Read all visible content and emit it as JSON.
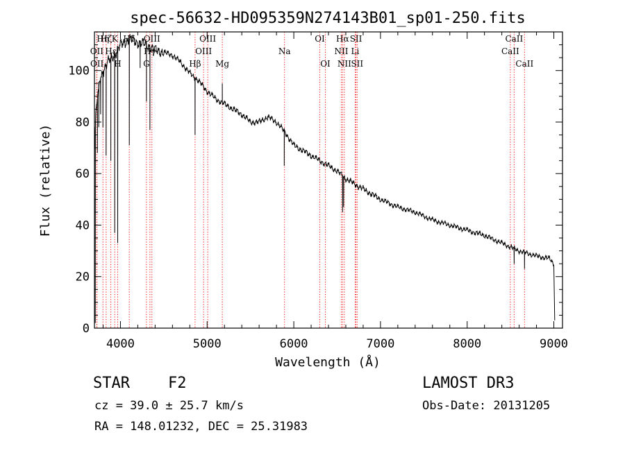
{
  "chart_data": {
    "type": "line",
    "title": "spec-56632-HD095359N274143B01_sp01-250.fits",
    "xlabel": "Wavelength (Å)",
    "ylabel": "Flux (relative)",
    "xlim": [
      3700,
      9100
    ],
    "ylim": [
      0,
      115
    ],
    "xticks": [
      4000,
      5000,
      6000,
      7000,
      8000,
      9000
    ],
    "yticks": [
      0,
      20,
      40,
      60,
      80,
      100
    ],
    "grid": false,
    "line_color": "#000000",
    "marker_color": "#ff0000",
    "continuum": [
      {
        "x": 3700,
        "y": 70
      },
      {
        "x": 3720,
        "y": 85
      },
      {
        "x": 3760,
        "y": 96
      },
      {
        "x": 3800,
        "y": 100
      },
      {
        "x": 3850,
        "y": 103
      },
      {
        "x": 3900,
        "y": 105
      },
      {
        "x": 3950,
        "y": 107
      },
      {
        "x": 4000,
        "y": 110
      },
      {
        "x": 4050,
        "y": 111
      },
      {
        "x": 4100,
        "y": 112
      },
      {
        "x": 4200,
        "y": 111
      },
      {
        "x": 4300,
        "y": 110
      },
      {
        "x": 4400,
        "y": 108
      },
      {
        "x": 4500,
        "y": 107
      },
      {
        "x": 4600,
        "y": 106
      },
      {
        "x": 4700,
        "y": 103
      },
      {
        "x": 4800,
        "y": 99
      },
      {
        "x": 4900,
        "y": 96
      },
      {
        "x": 5000,
        "y": 92
      },
      {
        "x": 5100,
        "y": 89
      },
      {
        "x": 5200,
        "y": 87
      },
      {
        "x": 5300,
        "y": 85
      },
      {
        "x": 5400,
        "y": 83
      },
      {
        "x": 5500,
        "y": 80
      },
      {
        "x": 5600,
        "y": 80
      },
      {
        "x": 5700,
        "y": 82
      },
      {
        "x": 5800,
        "y": 80
      },
      {
        "x": 5900,
        "y": 76
      },
      {
        "x": 6000,
        "y": 71
      },
      {
        "x": 6100,
        "y": 69
      },
      {
        "x": 6200,
        "y": 67
      },
      {
        "x": 6300,
        "y": 65
      },
      {
        "x": 6400,
        "y": 63
      },
      {
        "x": 6500,
        "y": 61
      },
      {
        "x": 6600,
        "y": 58
      },
      {
        "x": 6700,
        "y": 56
      },
      {
        "x": 6800,
        "y": 54
      },
      {
        "x": 6900,
        "y": 52
      },
      {
        "x": 7000,
        "y": 50
      },
      {
        "x": 7200,
        "y": 47
      },
      {
        "x": 7400,
        "y": 45
      },
      {
        "x": 7600,
        "y": 42
      },
      {
        "x": 7800,
        "y": 40
      },
      {
        "x": 8000,
        "y": 38
      },
      {
        "x": 8200,
        "y": 36
      },
      {
        "x": 8400,
        "y": 33
      },
      {
        "x": 8600,
        "y": 30
      },
      {
        "x": 8800,
        "y": 28
      },
      {
        "x": 8950,
        "y": 27
      },
      {
        "x": 9000,
        "y": 25
      },
      {
        "x": 9010,
        "y": 3
      }
    ],
    "absorption_dips": [
      {
        "x": 3710,
        "y": 2
      },
      {
        "x": 3734,
        "y": 68
      },
      {
        "x": 3750,
        "y": 78
      },
      {
        "x": 3771,
        "y": 83
      },
      {
        "x": 3798,
        "y": 78
      },
      {
        "x": 3835,
        "y": 67
      },
      {
        "x": 3889,
        "y": 65
      },
      {
        "x": 3934,
        "y": 37
      },
      {
        "x": 3968,
        "y": 33
      },
      {
        "x": 4102,
        "y": 71
      },
      {
        "x": 4227,
        "y": 101
      },
      {
        "x": 4300,
        "y": 88
      },
      {
        "x": 4340,
        "y": 77
      },
      {
        "x": 4861,
        "y": 75
      },
      {
        "x": 5175,
        "y": 95
      },
      {
        "x": 5890,
        "y": 63
      },
      {
        "x": 6563,
        "y": 45
      },
      {
        "x": 6575,
        "y": 47
      },
      {
        "x": 8542,
        "y": 25
      },
      {
        "x": 8662,
        "y": 23
      }
    ],
    "line_markers": [
      {
        "x": 3727,
        "label": "OII",
        "row": 1
      },
      {
        "x": 3729,
        "label": "OII",
        "row": 2
      },
      {
        "x": 3798,
        "label": "Hη",
        "row": 0
      },
      {
        "x": 3835,
        "label": "Hζ",
        "row": 0
      },
      {
        "x": 3889,
        "label": "Hε",
        "row": 1
      },
      {
        "x": 3934,
        "label": "K",
        "row": 0
      },
      {
        "x": 3968,
        "label": "H",
        "row": 2
      },
      {
        "x": 4102,
        "label": "Hδ",
        "row": 0
      },
      {
        "x": 4300,
        "label": "G",
        "row": 2
      },
      {
        "x": 4340,
        "label": "Hγ",
        "row": 1
      },
      {
        "x": 4363,
        "label": "OIII",
        "row": 0
      },
      {
        "x": 4861,
        "label": "Hβ",
        "row": 2
      },
      {
        "x": 4959,
        "label": "OIII",
        "row": 1
      },
      {
        "x": 5007,
        "label": "OIII",
        "row": 0
      },
      {
        "x": 5175,
        "label": "Mg",
        "row": 2
      },
      {
        "x": 5893,
        "label": "Na",
        "row": 1
      },
      {
        "x": 6300,
        "label": "OI",
        "row": 0
      },
      {
        "x": 6364,
        "label": "OI",
        "row": 2
      },
      {
        "x": 6548,
        "label": "NII",
        "row": 1
      },
      {
        "x": 6563,
        "label": "Hα",
        "row": 0
      },
      {
        "x": 6583,
        "label": "NII",
        "row": 2
      },
      {
        "x": 6708,
        "label": "Li",
        "row": 1
      },
      {
        "x": 6717,
        "label": "SII",
        "row": 0
      },
      {
        "x": 6731,
        "label": "SII",
        "row": 2
      },
      {
        "x": 8498,
        "label": "CaII",
        "row": 1
      },
      {
        "x": 8542,
        "label": "CaII",
        "row": 0
      },
      {
        "x": 8662,
        "label": "CaII",
        "row": 2
      }
    ],
    "annotations": {
      "object_class": "STAR",
      "subclass": "F2",
      "survey": "LAMOST DR3",
      "redshift": "cz = 39.0 ± 25.7 km/s",
      "obs_date": "Obs-Date: 20131205",
      "coordinates": "RA = 148.01232, DEC =  25.31983"
    }
  }
}
